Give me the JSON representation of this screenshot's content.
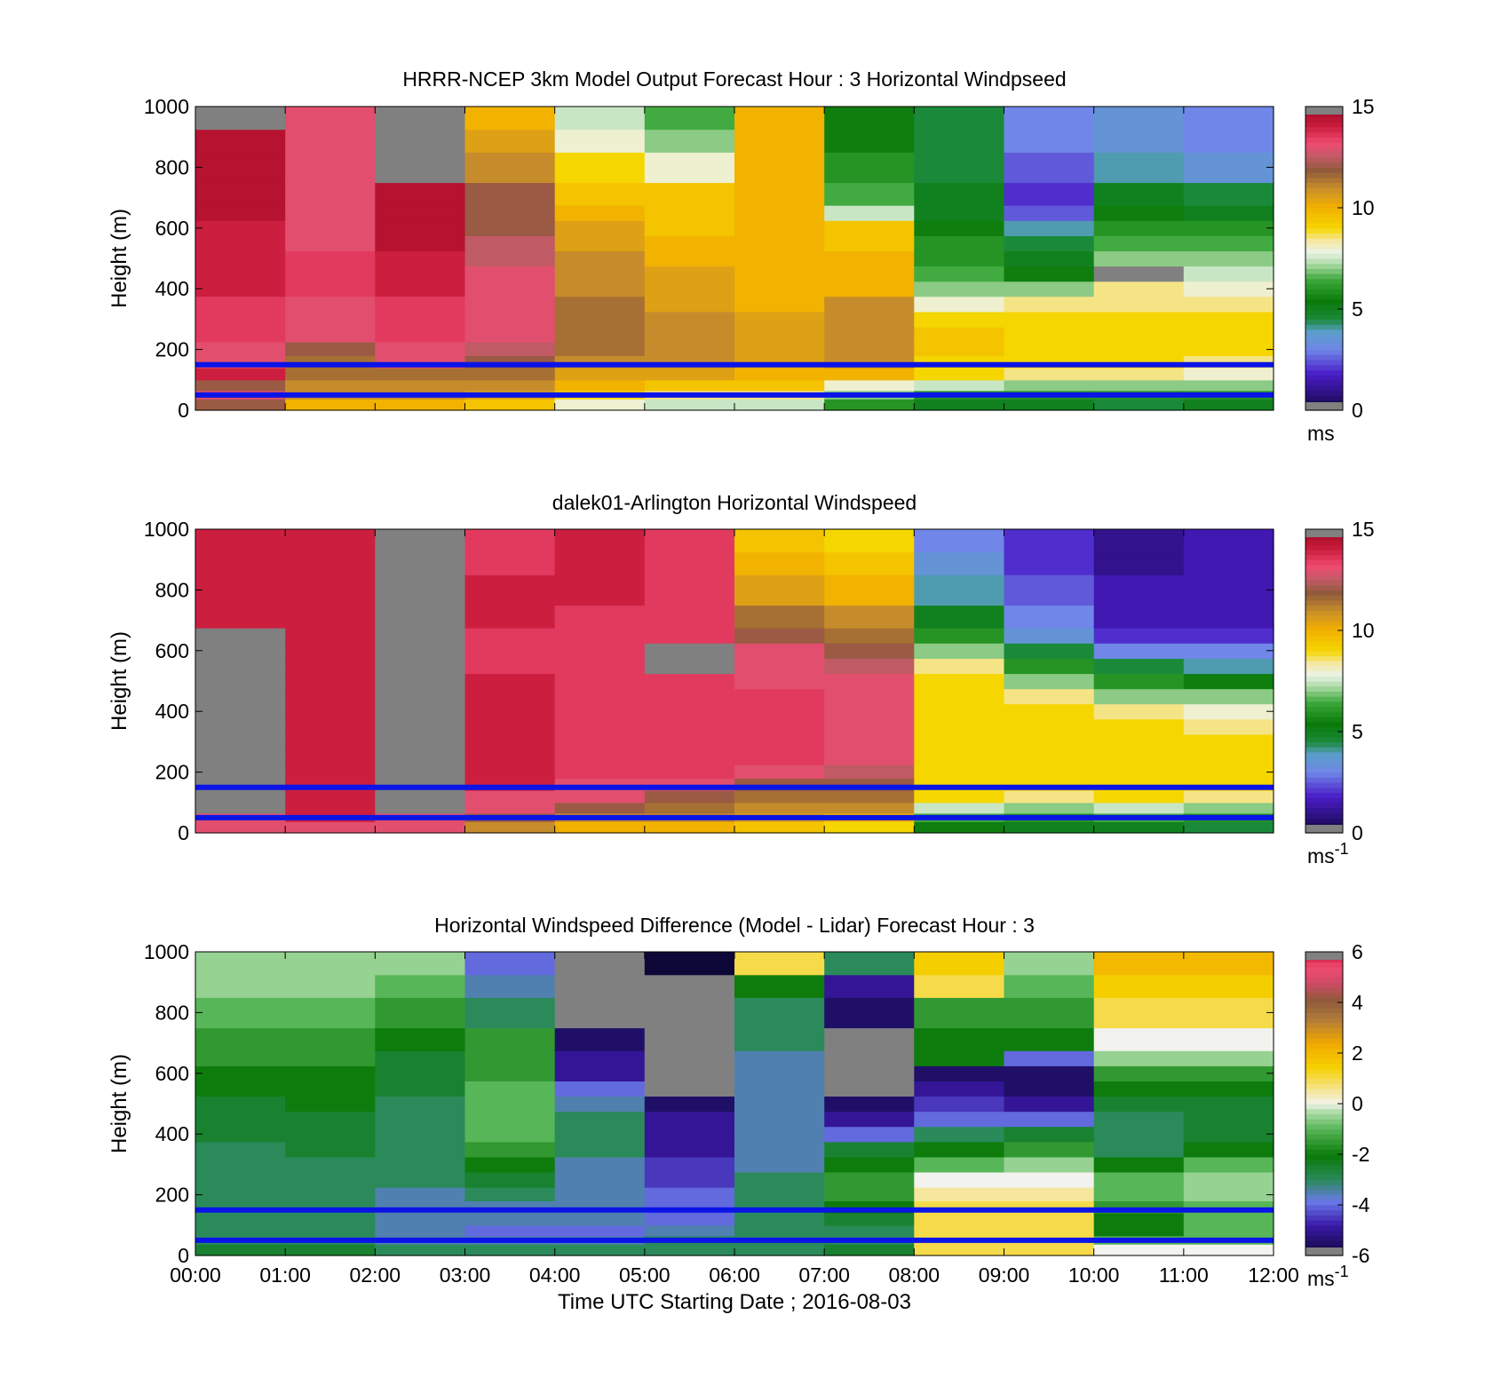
{
  "figure": {
    "x_tick_labels": [
      "00:00",
      "01:00",
      "02:00",
      "03:00",
      "04:00",
      "05:00",
      "06:00",
      "07:00",
      "08:00",
      "09:00",
      "10:00",
      "11:00",
      "12:00"
    ],
    "x_axis_label": "Time UTC  Starting Date ; 2016-08-03"
  },
  "chart_data": [
    {
      "type": "heatmap",
      "title": "HRRR-NCEP 3km Model Output   Forecast Hour : 3 Horizontal Windpseed",
      "ylabel": "Height (m)",
      "xlabel": "",
      "xlim": [
        0,
        12
      ],
      "ylim": [
        0,
        1000
      ],
      "y_ticks": [
        0,
        200,
        400,
        600,
        800,
        1000
      ],
      "colorbar": {
        "min": 0,
        "max": 15,
        "ticks": [
          0,
          5,
          10,
          15
        ],
        "unit": "ms",
        "unit_sup": "",
        "colormap": "speed"
      },
      "reference_lines_m": [
        150,
        50
      ],
      "x_hours": [
        0,
        1,
        2,
        3,
        4,
        5,
        6,
        7,
        8,
        9,
        10,
        11
      ],
      "heights_m": [
        25,
        50,
        80,
        120,
        160,
        200,
        250,
        300,
        350,
        400,
        450,
        500,
        550,
        600,
        650,
        700,
        800,
        900,
        950
      ],
      "columns": [
        {
          "hour": 0,
          "values": [
            12,
            13,
            12,
            14,
            13,
            13,
            13.5,
            13.5,
            13.5,
            14,
            14,
            14,
            14,
            14,
            14.5,
            14.5,
            14.5,
            14.5,
            null
          ]
        },
        {
          "hour": 1,
          "values": [
            10,
            11,
            11,
            11.5,
            11.5,
            12,
            13,
            13,
            13,
            13.5,
            13.5,
            13.5,
            13,
            13,
            13,
            13,
            13,
            13,
            13
          ]
        },
        {
          "hour": 2,
          "values": [
            10,
            11,
            11,
            11.5,
            13,
            13,
            13.5,
            13.5,
            13.5,
            14,
            14,
            14,
            14.5,
            14.5,
            14.5,
            14.5,
            null,
            null,
            null
          ]
        },
        {
          "hour": 3,
          "values": [
            9.5,
            10.5,
            11,
            11.5,
            12,
            12.5,
            13,
            13,
            13,
            13,
            13,
            12.5,
            12.5,
            12,
            12,
            12,
            11,
            10.5,
            10
          ]
        },
        {
          "hour": 4,
          "values": [
            8,
            9,
            10,
            10.5,
            11,
            11.5,
            11.5,
            11.5,
            11.5,
            11,
            11,
            11,
            10.5,
            10.5,
            10,
            9.5,
            9,
            8,
            7.5
          ]
        },
        {
          "hour": 5,
          "values": [
            7.5,
            8.5,
            9.5,
            10.5,
            11,
            11,
            11,
            11,
            10.5,
            10.5,
            10.5,
            10,
            10,
            9.5,
            9.5,
            9.5,
            8,
            7,
            6.5
          ]
        },
        {
          "hour": 6,
          "values": [
            7.5,
            8.5,
            9.5,
            10,
            10.5,
            10.5,
            10.5,
            10.5,
            10,
            10,
            10,
            10,
            10,
            10,
            10,
            10,
            10,
            10,
            10
          ]
        },
        {
          "hour": 7,
          "values": [
            6,
            7,
            8,
            10,
            11,
            11,
            11,
            11,
            11,
            10,
            10,
            10,
            9.5,
            9.5,
            7.5,
            6.5,
            6,
            5.5,
            5.5
          ]
        },
        {
          "hour": 8,
          "values": [
            5,
            6,
            7.5,
            9,
            9,
            9.5,
            9.5,
            9,
            8,
            7,
            6.5,
            6,
            6,
            5.5,
            5,
            5,
            4.5,
            4.5,
            4.5
          ]
        },
        {
          "hour": 9,
          "values": [
            5,
            6,
            7,
            8.5,
            9,
            9,
            9,
            9,
            8.5,
            7,
            5.5,
            5,
            4.5,
            4,
            2.5,
            2,
            2.5,
            3,
            3
          ]
        },
        {
          "hour": 10,
          "values": [
            4.5,
            6,
            7,
            8.5,
            9,
            9,
            9,
            9,
            8.5,
            8.5,
            null,
            7,
            6.5,
            6,
            5.5,
            5,
            4,
            3.5,
            3.5
          ]
        },
        {
          "hour": 11,
          "values": [
            5,
            6,
            7,
            8,
            8.5,
            9,
            9,
            9,
            8.5,
            8,
            7.5,
            7,
            6.5,
            6,
            5,
            4.5,
            3.5,
            3,
            3
          ]
        }
      ]
    },
    {
      "type": "heatmap",
      "title": "dalek01-Arlington  Horizontal Windspeed",
      "ylabel": "Height (m)",
      "xlabel": "",
      "xlim": [
        0,
        12
      ],
      "ylim": [
        0,
        1000
      ],
      "y_ticks": [
        0,
        200,
        400,
        600,
        800,
        1000
      ],
      "colorbar": {
        "min": 0,
        "max": 15,
        "ticks": [
          0,
          5,
          10,
          15
        ],
        "unit": "ms",
        "unit_sup": "-1",
        "colormap": "speed"
      },
      "reference_lines_m": [
        150,
        50
      ],
      "x_hours": [
        0,
        1,
        2,
        3,
        4,
        5,
        6,
        7,
        8,
        9,
        10,
        11
      ],
      "heights_m": [
        25,
        50,
        80,
        120,
        160,
        200,
        250,
        300,
        350,
        400,
        450,
        500,
        550,
        600,
        650,
        700,
        800,
        900,
        950
      ],
      "columns": [
        {
          "hour": 0,
          "values": [
            13,
            13,
            null,
            null,
            null,
            null,
            null,
            null,
            null,
            null,
            null,
            null,
            null,
            null,
            null,
            14,
            14,
            14,
            14
          ]
        },
        {
          "hour": 1,
          "values": [
            13,
            14,
            14,
            14,
            14,
            14,
            14,
            14,
            14,
            14,
            14,
            14,
            14,
            14,
            14,
            14,
            14,
            14,
            14
          ]
        },
        {
          "hour": 2,
          "values": [
            13,
            13,
            null,
            null,
            null,
            null,
            null,
            null,
            null,
            null,
            null,
            null,
            null,
            null,
            null,
            null,
            null,
            null,
            null
          ]
        },
        {
          "hour": 3,
          "values": [
            11,
            12,
            13,
            13,
            14,
            14,
            14,
            14,
            14,
            14,
            14,
            14,
            13.5,
            13.5,
            13.5,
            14,
            14,
            13.5,
            13.5
          ]
        },
        {
          "hour": 4,
          "values": [
            10,
            11,
            12,
            13,
            13,
            13.5,
            13.5,
            13.5,
            13.5,
            13.5,
            13.5,
            13.5,
            13.5,
            13.5,
            13.5,
            13.5,
            14,
            14,
            14
          ]
        },
        {
          "hour": 5,
          "values": [
            10,
            11,
            11.5,
            12,
            13,
            13.5,
            13.5,
            13.5,
            13.5,
            13.5,
            13.5,
            13.5,
            null,
            null,
            13.5,
            13.5,
            13.5,
            13.5,
            13.5
          ]
        },
        {
          "hour": 6,
          "values": [
            9.5,
            10.5,
            11,
            11.5,
            12,
            13,
            13.5,
            13.5,
            13.5,
            13.5,
            13.5,
            13,
            13,
            13,
            12,
            11.5,
            10.5,
            10,
            9.5
          ]
        },
        {
          "hour": 7,
          "values": [
            9,
            10,
            11,
            11.5,
            12,
            12.5,
            13,
            13,
            13,
            13,
            13,
            13,
            12.5,
            12,
            11.5,
            11,
            10,
            9.5,
            9
          ]
        },
        {
          "hour": 8,
          "values": [
            5.5,
            6.5,
            7.5,
            9,
            9,
            9,
            9,
            9,
            9,
            9,
            9,
            9,
            8.5,
            7,
            6,
            5,
            4,
            3.5,
            3
          ]
        },
        {
          "hour": 9,
          "values": [
            5,
            6,
            7,
            8.5,
            9,
            9,
            9,
            9,
            9,
            9,
            8.5,
            7,
            6,
            4.5,
            3.5,
            3,
            2.5,
            2,
            2
          ]
        },
        {
          "hour": 10,
          "values": [
            5,
            6.5,
            7.5,
            9,
            9,
            9,
            9,
            9,
            9,
            8.5,
            7,
            6,
            4.5,
            3,
            2,
            1.5,
            1.5,
            1,
            1
          ]
        },
        {
          "hour": 11,
          "values": [
            4.5,
            6,
            7,
            8.5,
            9,
            9,
            9,
            9,
            8.5,
            8,
            7,
            5.5,
            4,
            3,
            2,
            1.5,
            1.5,
            1.5,
            1.5
          ]
        }
      ]
    },
    {
      "type": "heatmap",
      "title": "Horizontal Windspeed Difference (Model - Lidar) Forecast Hour : 3",
      "ylabel": "Height (m)",
      "xlabel": "Time UTC  Starting Date ; 2016-08-03",
      "xlim": [
        0,
        12
      ],
      "ylim": [
        0,
        1000
      ],
      "y_ticks": [
        0,
        200,
        400,
        600,
        800,
        1000
      ],
      "colorbar": {
        "min": -6,
        "max": 6,
        "ticks": [
          -6,
          -4,
          -2,
          0,
          2,
          4,
          6
        ],
        "unit": "ms",
        "unit_sup": "-1",
        "colormap": "diff"
      },
      "reference_lines_m": [
        150,
        50
      ],
      "x_hours": [
        0,
        1,
        2,
        3,
        4,
        5,
        6,
        7,
        8,
        9,
        10,
        11
      ],
      "heights_m": [
        25,
        50,
        80,
        120,
        160,
        200,
        250,
        300,
        350,
        400,
        450,
        500,
        550,
        600,
        650,
        700,
        800,
        900,
        950
      ],
      "columns": [
        {
          "hour": 0,
          "values": [
            -2.5,
            -3,
            -3,
            -3,
            -3,
            -3,
            -3,
            -3,
            -3,
            -2.5,
            -2.5,
            -2.5,
            -2,
            -2,
            -1.5,
            -1.5,
            -1,
            -0.5,
            -0.5
          ]
        },
        {
          "hour": 1,
          "values": [
            -2.5,
            -3,
            -3,
            -3,
            -3,
            -3,
            -3,
            -3,
            -2.5,
            -2.5,
            -2.5,
            -2,
            -2,
            -2,
            -1.5,
            -1.5,
            -1,
            -0.5,
            -0.5
          ]
        },
        {
          "hour": 2,
          "values": [
            -3,
            -3.5,
            -3.5,
            -3.5,
            -3.5,
            -3.5,
            -3,
            -3,
            -3,
            -3,
            -3,
            -3,
            -2.5,
            -2.5,
            -2.5,
            -2,
            -1.5,
            -1,
            -0.5
          ]
        },
        {
          "hour": 3,
          "values": [
            -3,
            -3.5,
            -4,
            -3.5,
            -3.5,
            -3,
            -2.5,
            -2,
            -1.5,
            -1,
            -1,
            -1,
            -1,
            -1.5,
            -1.5,
            -1.5,
            -3,
            -3.5,
            -4
          ]
        },
        {
          "hour": 4,
          "values": [
            -3,
            -3.5,
            -4,
            -3.5,
            -3.5,
            -3.5,
            -3.5,
            -3.5,
            -3,
            -3,
            -3,
            -3.5,
            -4,
            -5,
            -5,
            -5.5,
            null,
            null,
            null
          ]
        },
        {
          "hour": 5,
          "values": [
            -3,
            -3,
            -3.5,
            -4,
            -4,
            -4,
            -4.5,
            -4.5,
            -5,
            -5,
            -5,
            -5.5,
            null,
            null,
            null,
            null,
            null,
            null,
            -6
          ]
        },
        {
          "hour": 6,
          "values": [
            -3,
            -3,
            -3,
            -3,
            -3,
            -3,
            -3,
            -3.5,
            -3.5,
            -3.5,
            -3.5,
            -3.5,
            -3.5,
            -3.5,
            -3.5,
            -3,
            -3,
            -2,
            1
          ]
        },
        {
          "hour": 7,
          "values": [
            -2.5,
            -3,
            -3,
            -2.5,
            -2,
            -1.5,
            -1.5,
            -2,
            -2.5,
            -4,
            -5,
            -5.5,
            null,
            null,
            null,
            null,
            -5.5,
            -5,
            -3
          ]
        },
        {
          "hour": 8,
          "values": [
            1,
            1,
            1,
            1,
            1,
            0.5,
            0,
            -1,
            -2,
            -3,
            -4,
            -4.5,
            -5,
            -5.5,
            -2,
            -2,
            -1.5,
            1,
            1.5
          ]
        },
        {
          "hour": 9,
          "values": [
            1,
            1,
            1,
            1,
            1,
            0.5,
            0,
            -0.5,
            -1.5,
            -2.5,
            -4,
            -5,
            -5.5,
            -5.5,
            -4,
            -2,
            -1.5,
            -1,
            -0.5
          ]
        },
        {
          "hour": 10,
          "values": [
            0,
            -1,
            -2,
            -2,
            -1.5,
            -1,
            -1,
            -2,
            -3,
            -3,
            -3,
            -2.5,
            -2,
            -1.5,
            -0.5,
            0,
            1,
            1.5,
            2
          ]
        },
        {
          "hour": 11,
          "values": [
            0,
            -1,
            -1,
            -1,
            -1,
            -0.5,
            -0.5,
            -1,
            -2,
            -2.5,
            -2.5,
            -2.5,
            -2,
            -1.5,
            -0.5,
            0,
            1,
            1.5,
            2
          ]
        }
      ]
    }
  ]
}
